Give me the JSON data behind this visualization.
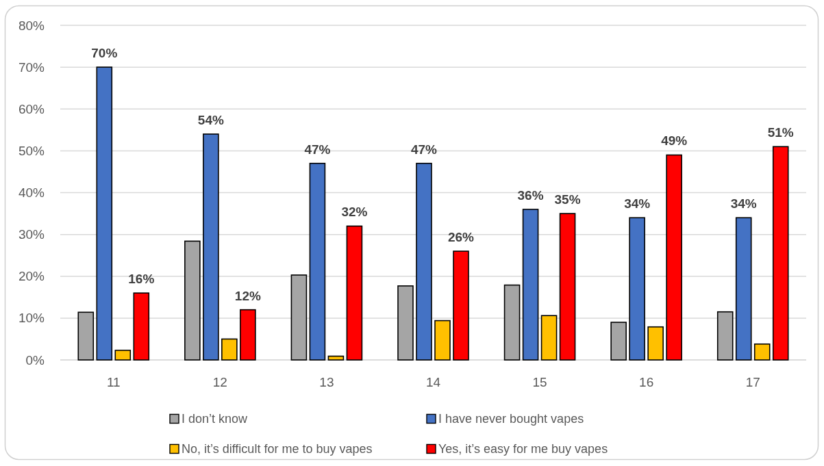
{
  "chart_data": {
    "type": "bar",
    "categories": [
      "11",
      "12",
      "13",
      "14",
      "15",
      "16",
      "17"
    ],
    "series": [
      {
        "name": "I don’t know",
        "color": "#a5a5a5",
        "values": [
          11.4,
          28.4,
          20.3,
          17.7,
          17.9,
          9.0,
          11.5
        ]
      },
      {
        "name": "I have never bought vapes",
        "color": "#4472c4",
        "values": [
          70,
          54,
          47,
          47,
          36,
          34,
          34
        ],
        "value_labels": [
          "70%",
          "54%",
          "47%",
          "47%",
          "36%",
          "34%",
          "34%"
        ]
      },
      {
        "name": "No, it’s difficult for me to buy vapes",
        "color": "#ffc000",
        "values": [
          2.3,
          5.0,
          0.9,
          9.4,
          10.6,
          7.9,
          3.8
        ]
      },
      {
        "name": "Yes, it’s easy for me buy vapes",
        "color": "#ff0000",
        "values": [
          16,
          12,
          32,
          26,
          35,
          49,
          51
        ],
        "value_labels": [
          "16%",
          "12%",
          "32%",
          "26%",
          "35%",
          "49%",
          "51%"
        ]
      }
    ],
    "ylim": [
      0,
      80
    ],
    "yticks": [
      {
        "value": 0,
        "label": "0%"
      },
      {
        "value": 10,
        "label": "10%"
      },
      {
        "value": 20,
        "label": "20%"
      },
      {
        "value": 30,
        "label": "30%"
      },
      {
        "value": 40,
        "label": "40%"
      },
      {
        "value": 50,
        "label": "50%"
      },
      {
        "value": 60,
        "label": "60%"
      },
      {
        "value": 70,
        "label": "70%"
      },
      {
        "value": 80,
        "label": "80%"
      }
    ],
    "grid": "y",
    "legend": "bottom"
  }
}
